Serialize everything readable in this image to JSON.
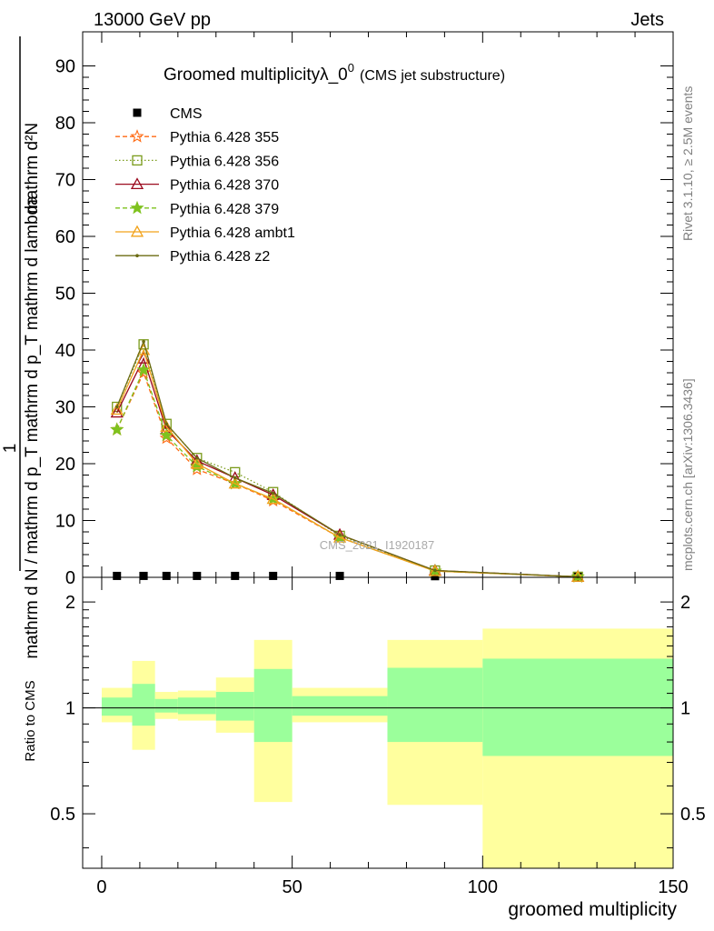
{
  "header": {
    "left": "13000 GeV pp",
    "right": "Jets"
  },
  "side_labels": {
    "rivet": "Rivet 3.1.10, ≥ 2.5M events",
    "mcplots": "mcplots.cern.ch [arXiv:1306.3436]"
  },
  "chart_data": [
    {
      "type": "line",
      "title": "Groomed multiplicityλ_0",
      "title_sup": "0",
      "subtitle": "(CMS jet substructure)",
      "watermark": "CMS_2021_I1920187",
      "ylabel_top": "mathrm d²N",
      "ylabel_bottom": "mathrm d N / mathrm d p_T mathrm d p_T mathrm d lambda",
      "ylabel_one": "1",
      "xlim": [
        -5,
        150
      ],
      "ylim": [
        0,
        96
      ],
      "yticks": [
        0,
        10,
        20,
        30,
        40,
        50,
        60,
        70,
        80,
        90
      ],
      "ytick_labels": [
        "0",
        "10",
        "20",
        "30",
        "40",
        "50",
        "60",
        "70",
        "80",
        "90"
      ],
      "bin_edges": [
        0,
        8,
        14,
        20,
        30,
        40,
        50,
        75,
        100,
        150
      ],
      "series": [
        {
          "name": "CMS",
          "color": "#000000",
          "marker": "square",
          "dash": "none",
          "x": [
            4,
            11,
            17,
            25,
            35,
            45,
            62.5,
            87.5,
            125
          ],
          "y": [
            0.25,
            0.25,
            0.25,
            0.25,
            0.25,
            0.25,
            0.25,
            0.2,
            0.1
          ]
        },
        {
          "name": "Pythia 6.428 355",
          "color": "#ff6a13",
          "marker": "star-open",
          "dash": "5,3",
          "x": [
            4,
            11,
            17,
            25,
            35,
            45,
            62.5,
            87.5,
            125
          ],
          "y": [
            26.0,
            36.0,
            24.5,
            19.0,
            16.5,
            13.5,
            7.0,
            1.1,
            0.1
          ]
        },
        {
          "name": "Pythia 6.428 356",
          "color": "#7a9b1b",
          "marker": "square-open",
          "dash": "1.5,2.5",
          "x": [
            4,
            11,
            17,
            25,
            35,
            45,
            62.5,
            87.5,
            125
          ],
          "y": [
            30.0,
            41.0,
            27.0,
            21.0,
            18.5,
            15.0,
            7.3,
            1.2,
            0.1
          ]
        },
        {
          "name": "Pythia 6.428 370",
          "color": "#9b0a1e",
          "marker": "triangle-open",
          "dash": "none",
          "x": [
            4,
            11,
            17,
            25,
            35,
            45,
            62.5,
            87.5,
            125
          ],
          "y": [
            29.0,
            38.5,
            26.0,
            20.5,
            17.5,
            14.5,
            7.5,
            1.2,
            0.1
          ]
        },
        {
          "name": "Pythia 6.428 379",
          "color": "#7ec21e",
          "marker": "star",
          "dash": "5,3",
          "x": [
            4,
            11,
            17,
            25,
            35,
            45,
            62.5,
            87.5,
            125
          ],
          "y": [
            26.0,
            36.5,
            25.0,
            19.5,
            16.5,
            13.8,
            7.0,
            1.1,
            0.1
          ]
        },
        {
          "name": "Pythia 6.428 ambt1",
          "color": "#f2a21a",
          "marker": "triangle-open",
          "dash": "none",
          "x": [
            4,
            11,
            17,
            25,
            35,
            45,
            62.5,
            87.5,
            125
          ],
          "y": [
            29.5,
            40.0,
            26.5,
            20.0,
            16.5,
            13.8,
            7.0,
            1.1,
            0.1
          ]
        },
        {
          "name": "Pythia 6.428 z2",
          "color": "#6b6b13",
          "marker": "dot",
          "dash": "none",
          "x": [
            4,
            11,
            17,
            25,
            35,
            45,
            62.5,
            87.5,
            125
          ],
          "y": [
            30.0,
            41.5,
            27.0,
            21.0,
            17.5,
            14.8,
            7.5,
            1.2,
            0.1
          ]
        }
      ]
    },
    {
      "type": "area",
      "ylabel": "Ratio to CMS",
      "xlabel": "groomed multiplicity",
      "xlim": [
        -5,
        150
      ],
      "ylim": [
        0.35,
        2.35
      ],
      "yticks": [
        0.5,
        1,
        2
      ],
      "ytick_labels": [
        "0.5",
        "1",
        "2"
      ],
      "xticks": [
        0,
        50,
        100,
        150
      ],
      "xtick_labels": [
        "0",
        "50",
        "100",
        "150"
      ],
      "reference_line": 1,
      "bin_edges": [
        0,
        8,
        14,
        20,
        30,
        40,
        50,
        75,
        100,
        150
      ],
      "band_total": {
        "color": "#ffff9e",
        "lo": [
          0.91,
          0.76,
          0.93,
          0.92,
          0.85,
          0.54,
          0.91,
          0.53,
          0.35,
          0.35
        ],
        "hi": [
          1.14,
          1.36,
          1.11,
          1.12,
          1.22,
          1.56,
          1.14,
          1.56,
          1.68,
          1.68
        ]
      },
      "band_stat": {
        "color": "#9bff9b",
        "lo": [
          0.95,
          0.89,
          0.97,
          0.96,
          0.92,
          0.8,
          0.95,
          0.8,
          0.73,
          0.73
        ],
        "hi": [
          1.07,
          1.17,
          1.06,
          1.07,
          1.11,
          1.29,
          1.08,
          1.3,
          1.38,
          1.38
        ]
      }
    }
  ]
}
